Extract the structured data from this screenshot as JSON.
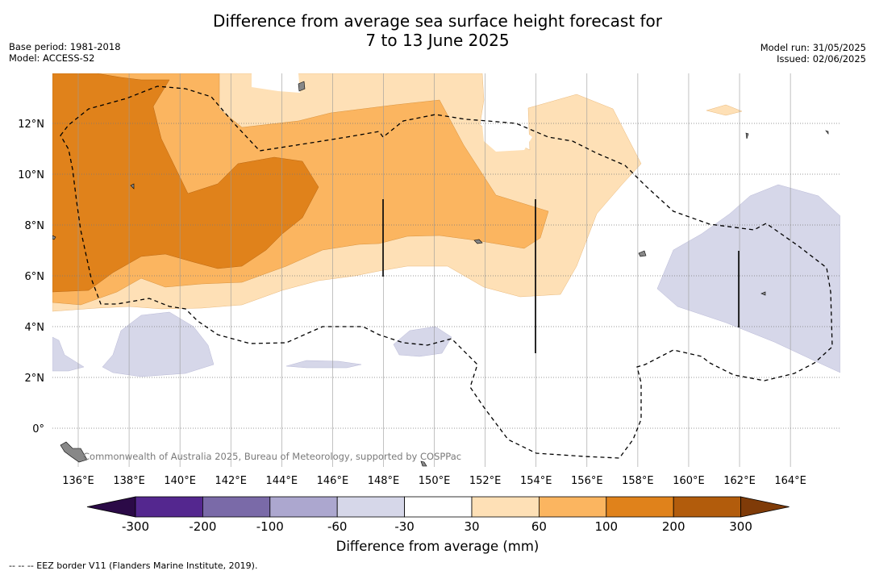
{
  "title": {
    "line1": "Difference from average sea surface height forecast for",
    "line2": "7 to 13 June 2025"
  },
  "meta_left": {
    "base_period": "Base period: 1981-2018",
    "model": "Model: ACCESS-S2"
  },
  "meta_right": {
    "model_run": "Model run: 31/05/2025",
    "issued": "Issued: 02/06/2025"
  },
  "map": {
    "lon_labels": [
      "136°E",
      "138°E",
      "140°E",
      "142°E",
      "144°E",
      "146°E",
      "148°E",
      "150°E",
      "152°E",
      "154°E",
      "156°E",
      "158°E",
      "160°E",
      "162°E",
      "164°E"
    ],
    "lat_labels": [
      "12°N",
      "10°N",
      "8°N",
      "6°N",
      "4°N",
      "2°N",
      "0°"
    ],
    "credit": "Commonwealth of Australia 2025, Bureau of Meteorology, supported by COSPPac"
  },
  "colorbar": {
    "title": "Difference from average (mm)",
    "tick_labels": [
      "-300",
      "-200",
      "-100",
      "-60",
      "-30",
      "30",
      "60",
      "100",
      "200",
      "300"
    ],
    "colors": [
      "#2b0a47",
      "#54278f",
      "#7a6aa8",
      "#aca7cf",
      "#d6d7e9",
      "#ffffff",
      "#fee0b6",
      "#fbb560",
      "#e0821b",
      "#b25c0c",
      "#7f3b08"
    ]
  },
  "legend_note": "--  --  -- EEZ border V11 (Flanders Marine Institute, 2019)."
}
